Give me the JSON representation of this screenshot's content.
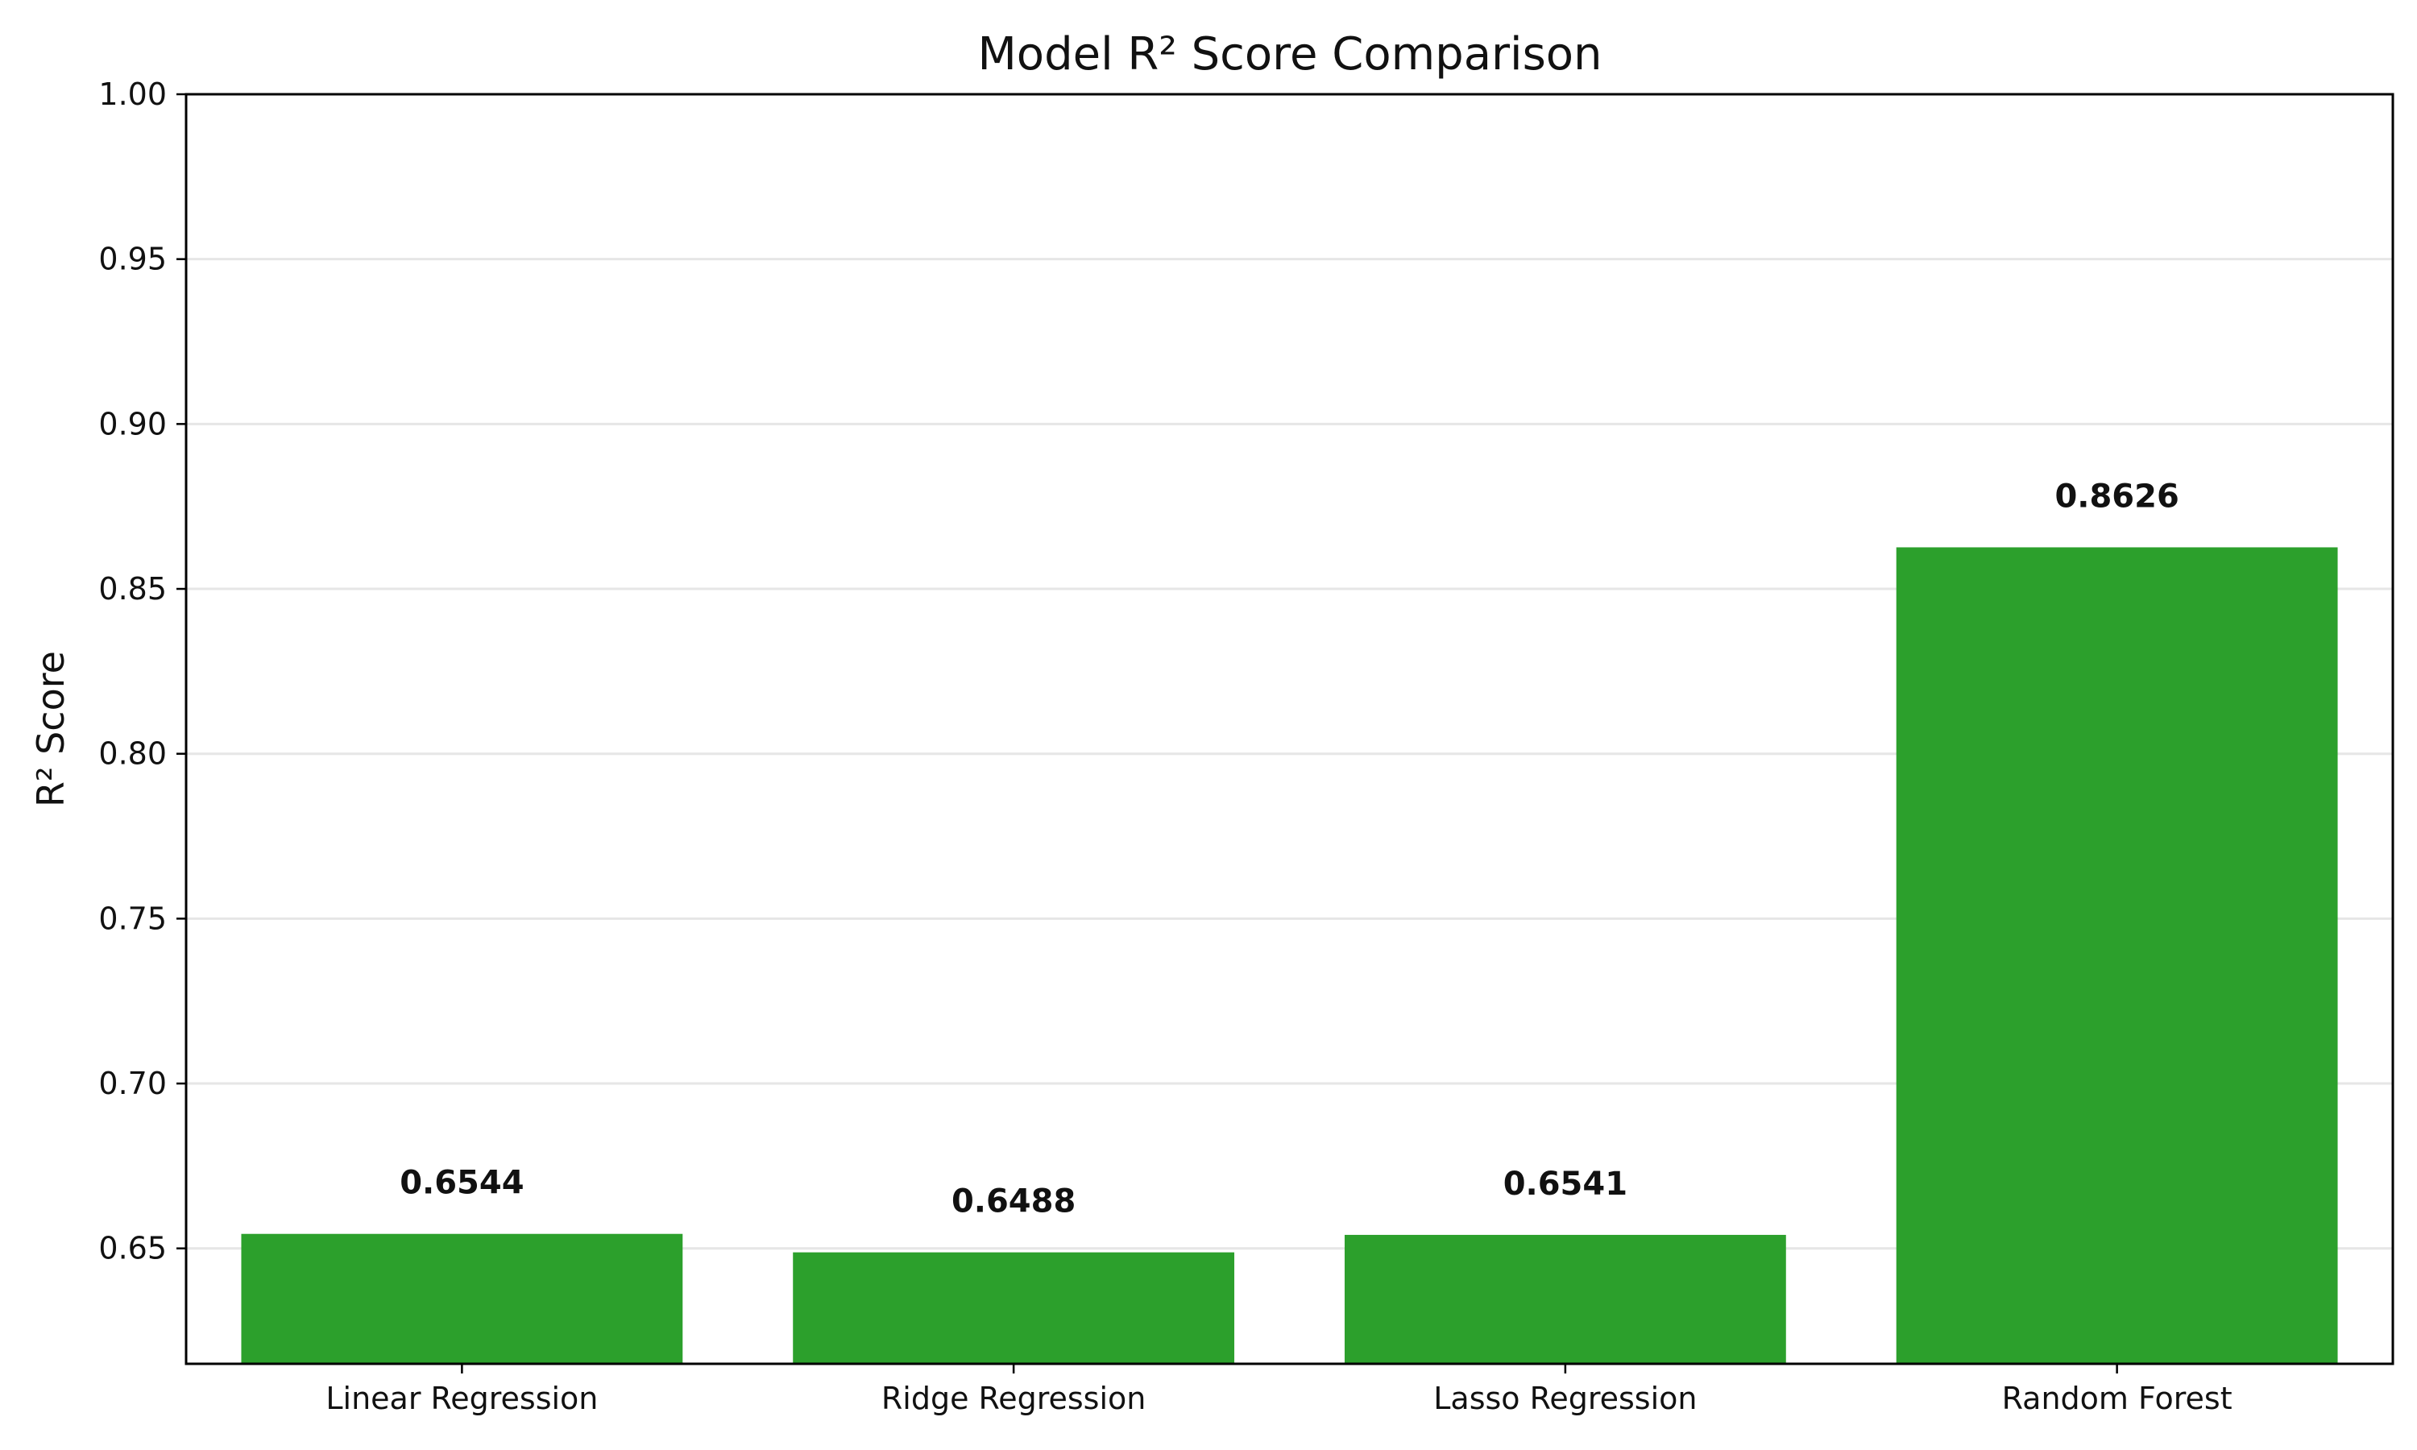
{
  "chart_data": {
    "type": "bar",
    "title": "Model R² Score Comparison",
    "xlabel": "",
    "ylabel": "R² Score",
    "categories": [
      "Linear Regression",
      "Ridge Regression",
      "Lasso Regression",
      "Random Forest"
    ],
    "values": [
      0.6544,
      0.6488,
      0.6541,
      0.8626
    ],
    "value_labels": [
      "0.6544",
      "0.6488",
      "0.6541",
      "0.8626"
    ],
    "ylim": [
      0.615,
      1.0
    ],
    "yticks": [
      0.65,
      0.7,
      0.75,
      0.8,
      0.85,
      0.9,
      0.95,
      1.0
    ],
    "ytick_labels": [
      "0.65",
      "0.70",
      "0.75",
      "0.80",
      "0.85",
      "0.90",
      "0.95",
      "1.00"
    ],
    "grid": "y",
    "legend": "none",
    "colors": {
      "bar": "#2ca02c",
      "grid": "#e6e6e6",
      "axis": "#000000",
      "text": "#111111"
    }
  }
}
